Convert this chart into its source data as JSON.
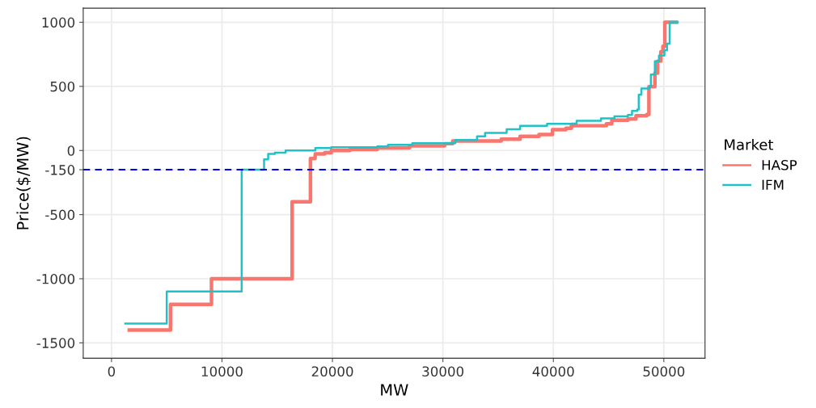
{
  "chart_data": {
    "type": "step",
    "xlabel": "MW",
    "ylabel": "Price($/MW)",
    "legend_title": "Market",
    "legend": "right",
    "grid": true,
    "xlim": [
      -2560,
      53730
    ],
    "ylim": [
      -1620,
      1110
    ],
    "xticks": [
      0,
      10000,
      20000,
      30000,
      40000,
      50000
    ],
    "yticks": [
      -1500,
      -1000,
      -500,
      -150,
      0,
      500,
      1000
    ],
    "ref_lines": [
      {
        "axis": "y",
        "value": -150,
        "color": "#0000ff",
        "line_style": "dashed"
      }
    ],
    "series": [
      {
        "name": "HASP",
        "color": "#f8766d",
        "x": [
          1610,
          5340,
          9050,
          16350,
          18010,
          18430,
          18450,
          19300,
          19900,
          21590,
          24060,
          26980,
          30160,
          30890,
          35280,
          36990,
          38700,
          39920,
          41140,
          41630,
          44800,
          45290,
          46750,
          47480,
          48460,
          48650,
          48950,
          49190,
          49440,
          49730,
          49920,
          50090,
          51140
        ],
        "values": [
          -1400,
          -1200,
          -1000,
          -400,
          -63,
          -38,
          -27,
          -17,
          0,
          8,
          21,
          36,
          53,
          74,
          88,
          110,
          124,
          162,
          173,
          193,
          208,
          236,
          246,
          271,
          281,
          498,
          498,
          603,
          697,
          771,
          813,
          1000,
          1000
        ]
      },
      {
        "name": "IFM",
        "color": "#1fc3c7",
        "x": [
          1244,
          5000,
          11785,
          13810,
          14180,
          14785,
          15760,
          18450,
          19900,
          24060,
          25030,
          27230,
          31130,
          33090,
          33820,
          35770,
          36990,
          39430,
          41630,
          42110,
          44310,
          45530,
          46750,
          47120,
          47600,
          47730,
          47970,
          48700,
          48830,
          49190,
          49560,
          50050,
          50290,
          50530,
          51260
        ],
        "values": [
          -1350,
          -1100,
          -150,
          -69,
          -27,
          -17,
          0,
          19,
          25,
          32,
          44,
          57,
          82,
          110,
          137,
          166,
          193,
          208,
          210,
          231,
          250,
          267,
          277,
          309,
          320,
          435,
          483,
          498,
          592,
          697,
          740,
          781,
          834,
          1000,
          1000
        ]
      }
    ]
  }
}
